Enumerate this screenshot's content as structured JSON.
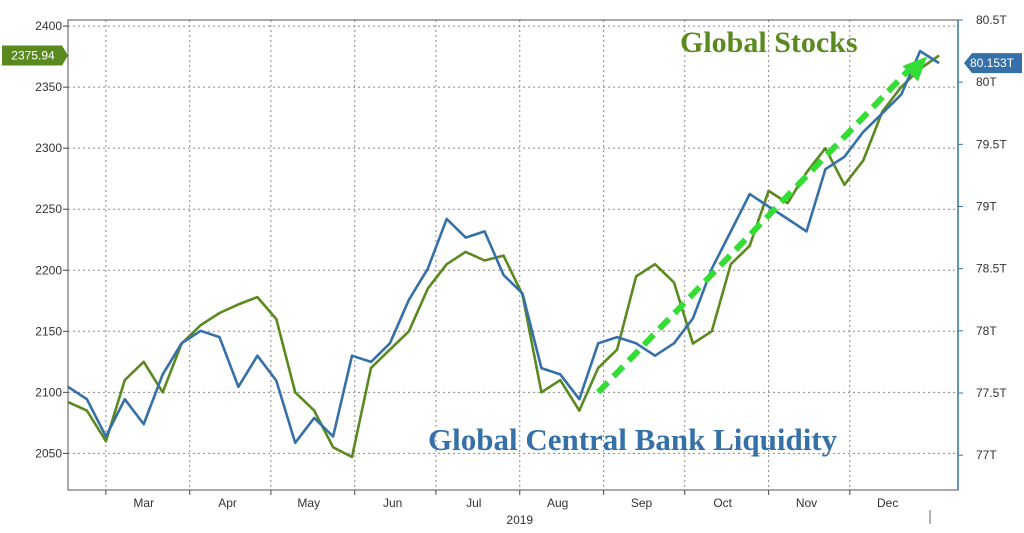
{
  "chart_data": {
    "type": "line",
    "title": "",
    "xlabel": "2019",
    "x_tick_labels": [
      "Mar",
      "Apr",
      "May",
      "Jun",
      "Jul",
      "Aug",
      "Sep",
      "Oct",
      "Nov",
      "Dec"
    ],
    "left_axis": {
      "label": "",
      "ylim": [
        2020,
        2405
      ],
      "ticks": [
        "2400",
        "2350",
        "2300",
        "2250",
        "2200",
        "2150",
        "2100",
        "2050"
      ]
    },
    "right_axis": {
      "label": "",
      "ylim": [
        76.72,
        80.5
      ],
      "ticks": [
        "80.5T",
        "80T",
        "79.5T",
        "79T",
        "78.5T",
        "78T",
        "77.5T",
        "77T"
      ]
    },
    "grid": true,
    "legend": "none",
    "series": [
      {
        "name": "Global Stocks",
        "axis": "left",
        "color": "#5a8a1f",
        "last_value_label": "2375.94",
        "x": [
          "2019-02-15",
          "2019-02-22",
          "2019-03-01",
          "2019-03-08",
          "2019-03-15",
          "2019-03-22",
          "2019-03-29",
          "2019-04-05",
          "2019-04-12",
          "2019-04-19",
          "2019-04-26",
          "2019-05-03",
          "2019-05-10",
          "2019-05-17",
          "2019-05-24",
          "2019-05-31",
          "2019-06-07",
          "2019-06-14",
          "2019-06-21",
          "2019-06-28",
          "2019-07-05",
          "2019-07-12",
          "2019-07-19",
          "2019-07-26",
          "2019-08-02",
          "2019-08-09",
          "2019-08-16",
          "2019-08-23",
          "2019-08-30",
          "2019-09-06",
          "2019-09-13",
          "2019-09-20",
          "2019-09-27",
          "2019-10-04",
          "2019-10-11",
          "2019-10-18",
          "2019-10-25",
          "2019-11-01",
          "2019-11-08",
          "2019-11-15",
          "2019-11-22",
          "2019-11-29",
          "2019-12-06",
          "2019-12-13",
          "2019-12-20",
          "2019-12-27",
          "2020-01-03"
        ],
        "values": [
          2092,
          2085,
          2060,
          2110,
          2125,
          2100,
          2140,
          2155,
          2165,
          2172,
          2178,
          2160,
          2100,
          2085,
          2055,
          2047,
          2120,
          2135,
          2150,
          2185,
          2205,
          2215,
          2208,
          2212,
          2180,
          2100,
          2110,
          2085,
          2120,
          2135,
          2195,
          2205,
          2190,
          2140,
          2150,
          2205,
          2220,
          2265,
          2255,
          2280,
          2300,
          2270,
          2290,
          2330,
          2350,
          2365,
          2375.94
        ]
      },
      {
        "name": "Global Central Bank Liquidity",
        "axis": "right",
        "color": "#3570a8",
        "last_value_label": "80.153T",
        "x": [
          "2019-02-15",
          "2019-02-22",
          "2019-03-01",
          "2019-03-08",
          "2019-03-15",
          "2019-03-22",
          "2019-03-29",
          "2019-04-05",
          "2019-04-12",
          "2019-04-19",
          "2019-04-26",
          "2019-05-03",
          "2019-05-10",
          "2019-05-17",
          "2019-05-24",
          "2019-05-31",
          "2019-06-07",
          "2019-06-14",
          "2019-06-21",
          "2019-06-28",
          "2019-07-05",
          "2019-07-12",
          "2019-07-19",
          "2019-07-26",
          "2019-08-02",
          "2019-08-09",
          "2019-08-16",
          "2019-08-23",
          "2019-08-30",
          "2019-09-06",
          "2019-09-13",
          "2019-09-20",
          "2019-09-27",
          "2019-10-04",
          "2019-10-11",
          "2019-10-18",
          "2019-10-25",
          "2019-11-01",
          "2019-11-08",
          "2019-11-15",
          "2019-11-22",
          "2019-11-29",
          "2019-12-06",
          "2019-12-13",
          "2019-12-20",
          "2019-12-27",
          "2020-01-03"
        ],
        "values": [
          77.55,
          77.45,
          77.15,
          77.45,
          77.25,
          77.65,
          77.9,
          78.0,
          77.95,
          77.55,
          77.8,
          77.6,
          77.1,
          77.3,
          77.15,
          77.8,
          77.75,
          77.9,
          78.25,
          78.5,
          78.9,
          78.75,
          78.8,
          78.45,
          78.3,
          77.7,
          77.65,
          77.45,
          77.9,
          77.95,
          77.9,
          77.8,
          77.9,
          78.1,
          78.5,
          78.8,
          79.1,
          79.0,
          78.9,
          78.8,
          79.3,
          79.4,
          79.6,
          79.75,
          79.9,
          80.25,
          80.153
        ]
      }
    ],
    "annotations": [
      {
        "text": "Global Stocks",
        "color": "#5a8a1f"
      },
      {
        "text": "Global Central Bank Liquidity",
        "color": "#3570a8"
      }
    ],
    "trend_arrow": {
      "color": "#33dd33",
      "from": [
        "2019-08-30",
        2100
      ],
      "to": [
        "2020-01-03",
        2380
      ]
    }
  }
}
